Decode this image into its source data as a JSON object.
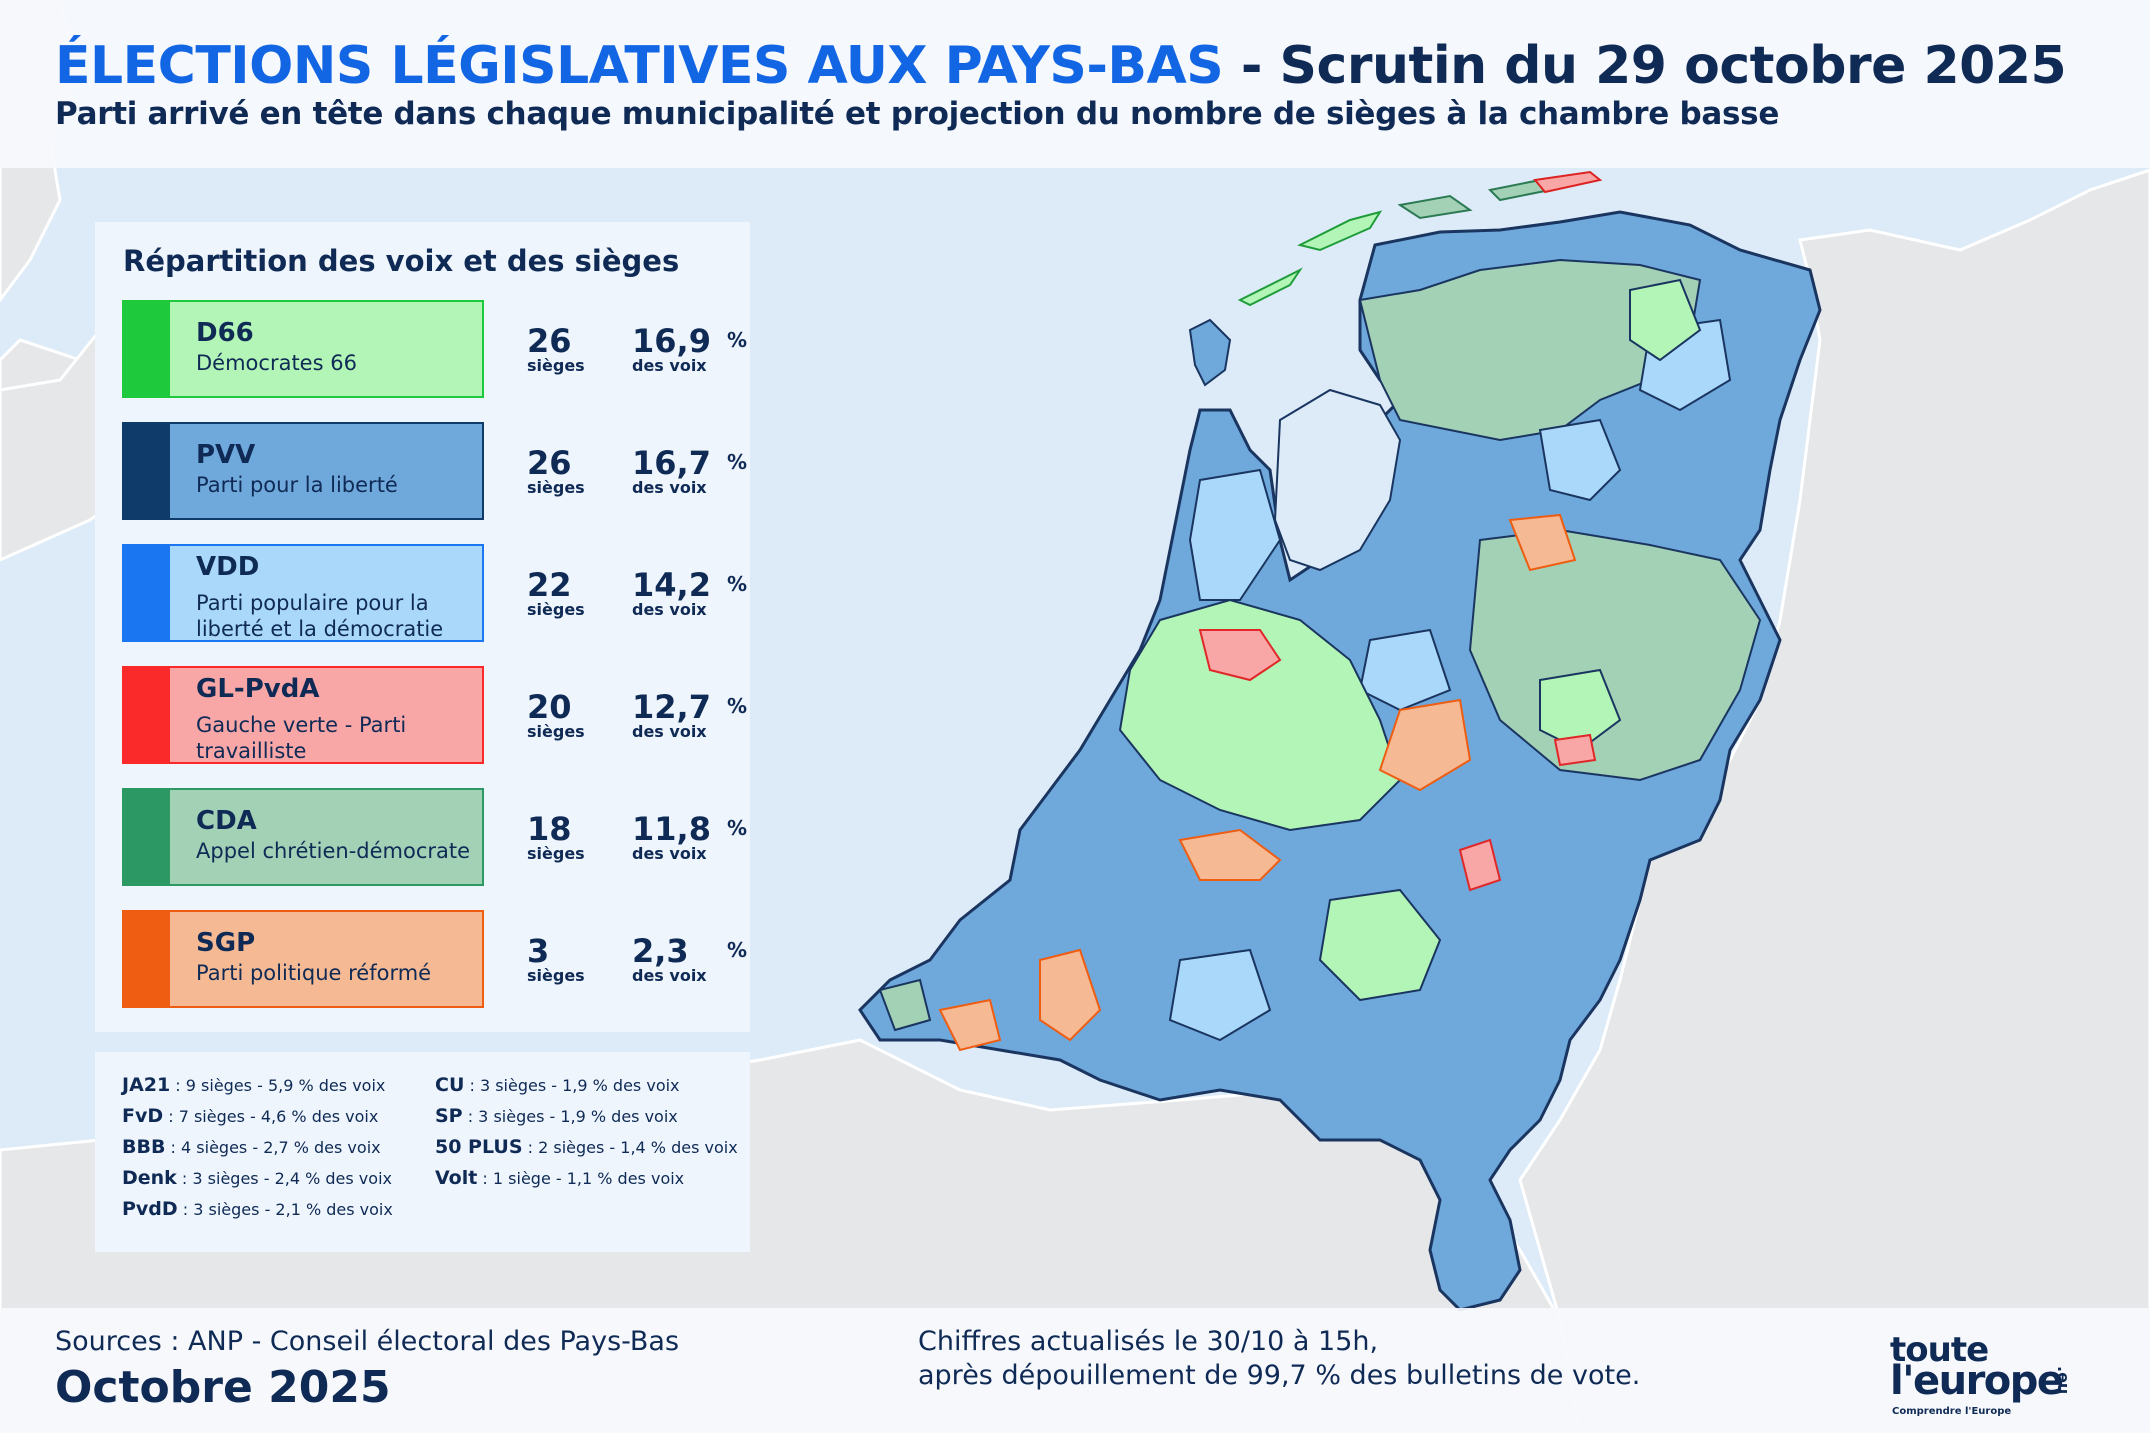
{
  "header": {
    "title_main": "ÉLECTIONS LÉGISLATIVES AUX PAYS-BAS",
    "title_rest": " - Scrutin du 29 octobre 2025",
    "subtitle": "Parti arrivé en tête dans chaque municipalité et projection du nombre de sièges à la chambre basse"
  },
  "legend": {
    "title": "Répartition des voix et des sièges",
    "seats_label": "sièges",
    "votes_label": "des voix",
    "pct_sign": "%",
    "parties": [
      {
        "abbr": "D66",
        "name": "Démocrates 66",
        "seats": "26",
        "pct": "16,9",
        "color": "#1fc93c",
        "fill": "#b2f5b6"
      },
      {
        "abbr": "PVV",
        "name": "Parti pour la liberté",
        "seats": "26",
        "pct": "16,7",
        "color": "#0f3b6b",
        "fill": "#6fa8db"
      },
      {
        "abbr": "VDD",
        "name": "Parti populaire pour la liberté et la démocratie",
        "seats": "22",
        "pct": "14,2",
        "color": "#1b76f2",
        "fill": "#aad8fa"
      },
      {
        "abbr": "GL-PvdA",
        "name": "Gauche verte - Parti travailliste",
        "seats": "20",
        "pct": "12,7",
        "color": "#fa2a2a",
        "fill": "#f9a6a6"
      },
      {
        "abbr": "CDA",
        "name": "Appel chrétien-démocrate",
        "seats": "18",
        "pct": "11,8",
        "color": "#2c9965",
        "fill": "#a2d1b6"
      },
      {
        "abbr": "SGP",
        "name": "Parti politique réformé",
        "seats": "3",
        "pct": "2,3",
        "color": "#ee5d12",
        "fill": "#f5b993"
      }
    ]
  },
  "others": {
    "left": [
      {
        "abbr": "JA21",
        "text": " : 9 sièges - 5,9 % des voix"
      },
      {
        "abbr": "FvD",
        "text": " : 7 sièges - 4,6 % des voix"
      },
      {
        "abbr": "BBB",
        "text": " : 4 sièges - 2,7 % des voix"
      },
      {
        "abbr": "Denk",
        "text": " : 3 sièges - 2,4 % des voix"
      },
      {
        "abbr": "PvdD",
        "text": " : 3 sièges - 2,1 % des voix"
      }
    ],
    "right": [
      {
        "abbr": "CU",
        "text": " : 3 sièges - 1,9 % des voix"
      },
      {
        "abbr": "SP",
        "text": " : 3 sièges - 1,9 % des voix"
      },
      {
        "abbr": "50 PLUS",
        "text": " : 2 sièges - 1,4 % des voix"
      },
      {
        "abbr": "Volt",
        "text": " : 1 siège - 1,1 % des voix"
      }
    ]
  },
  "footer": {
    "sources": "Sources : ANP - Conseil électoral des Pays-Bas",
    "date": "Octobre 2025",
    "note_line1": "Chiffres actualisés le 30/10 à 15h,",
    "note_line2": "après dépouillement de 99,7 % des bulletins de vote."
  },
  "logo": {
    "line1": "toute",
    "line2": "l'europe",
    "suffix": ".eu",
    "tagline": "Comprendre l'Europe"
  },
  "map": {
    "sea_color": "#dcebf7",
    "land_color": "#e6e7e9",
    "border_color": "#ffffff",
    "municipality_border": "#1a3560"
  }
}
